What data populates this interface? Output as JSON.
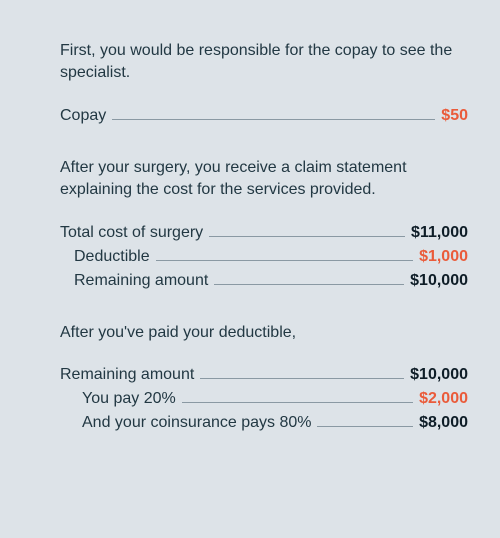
{
  "colors": {
    "background": "#dde3e8",
    "text": "#223843",
    "value_dark": "#0e1d27",
    "value_orange": "#ea5b3a",
    "leader": "#8a99a3"
  },
  "typography": {
    "body_fontsize": 16,
    "value_weight": 700
  },
  "intro1": "First, you would be responsible for the copay to see the specialist.",
  "copay": {
    "label": "Copay",
    "value": "$50",
    "color": "orange"
  },
  "intro2": "After your surgery, you receive a claim statement explaining the cost for the services provided.",
  "surgery_block": [
    {
      "label": "Total cost of surgery",
      "value": "$11,000",
      "color": "dark",
      "indent": 0
    },
    {
      "label": "Deductible",
      "value": "$1,000",
      "color": "orange",
      "indent": 1
    },
    {
      "label": "Remaining amount",
      "value": "$10,000",
      "color": "dark",
      "indent": 1
    }
  ],
  "intro3": "After you've paid your deductible,",
  "coinsurance_block": [
    {
      "label": "Remaining amount",
      "value": "$10,000",
      "color": "dark",
      "indent": 0
    },
    {
      "label": "You pay 20%",
      "value": "$2,000",
      "color": "orange",
      "indent": 2
    },
    {
      "label": "And your coinsurance pays 80%",
      "value": "$8,000",
      "color": "dark",
      "indent": 2
    }
  ]
}
